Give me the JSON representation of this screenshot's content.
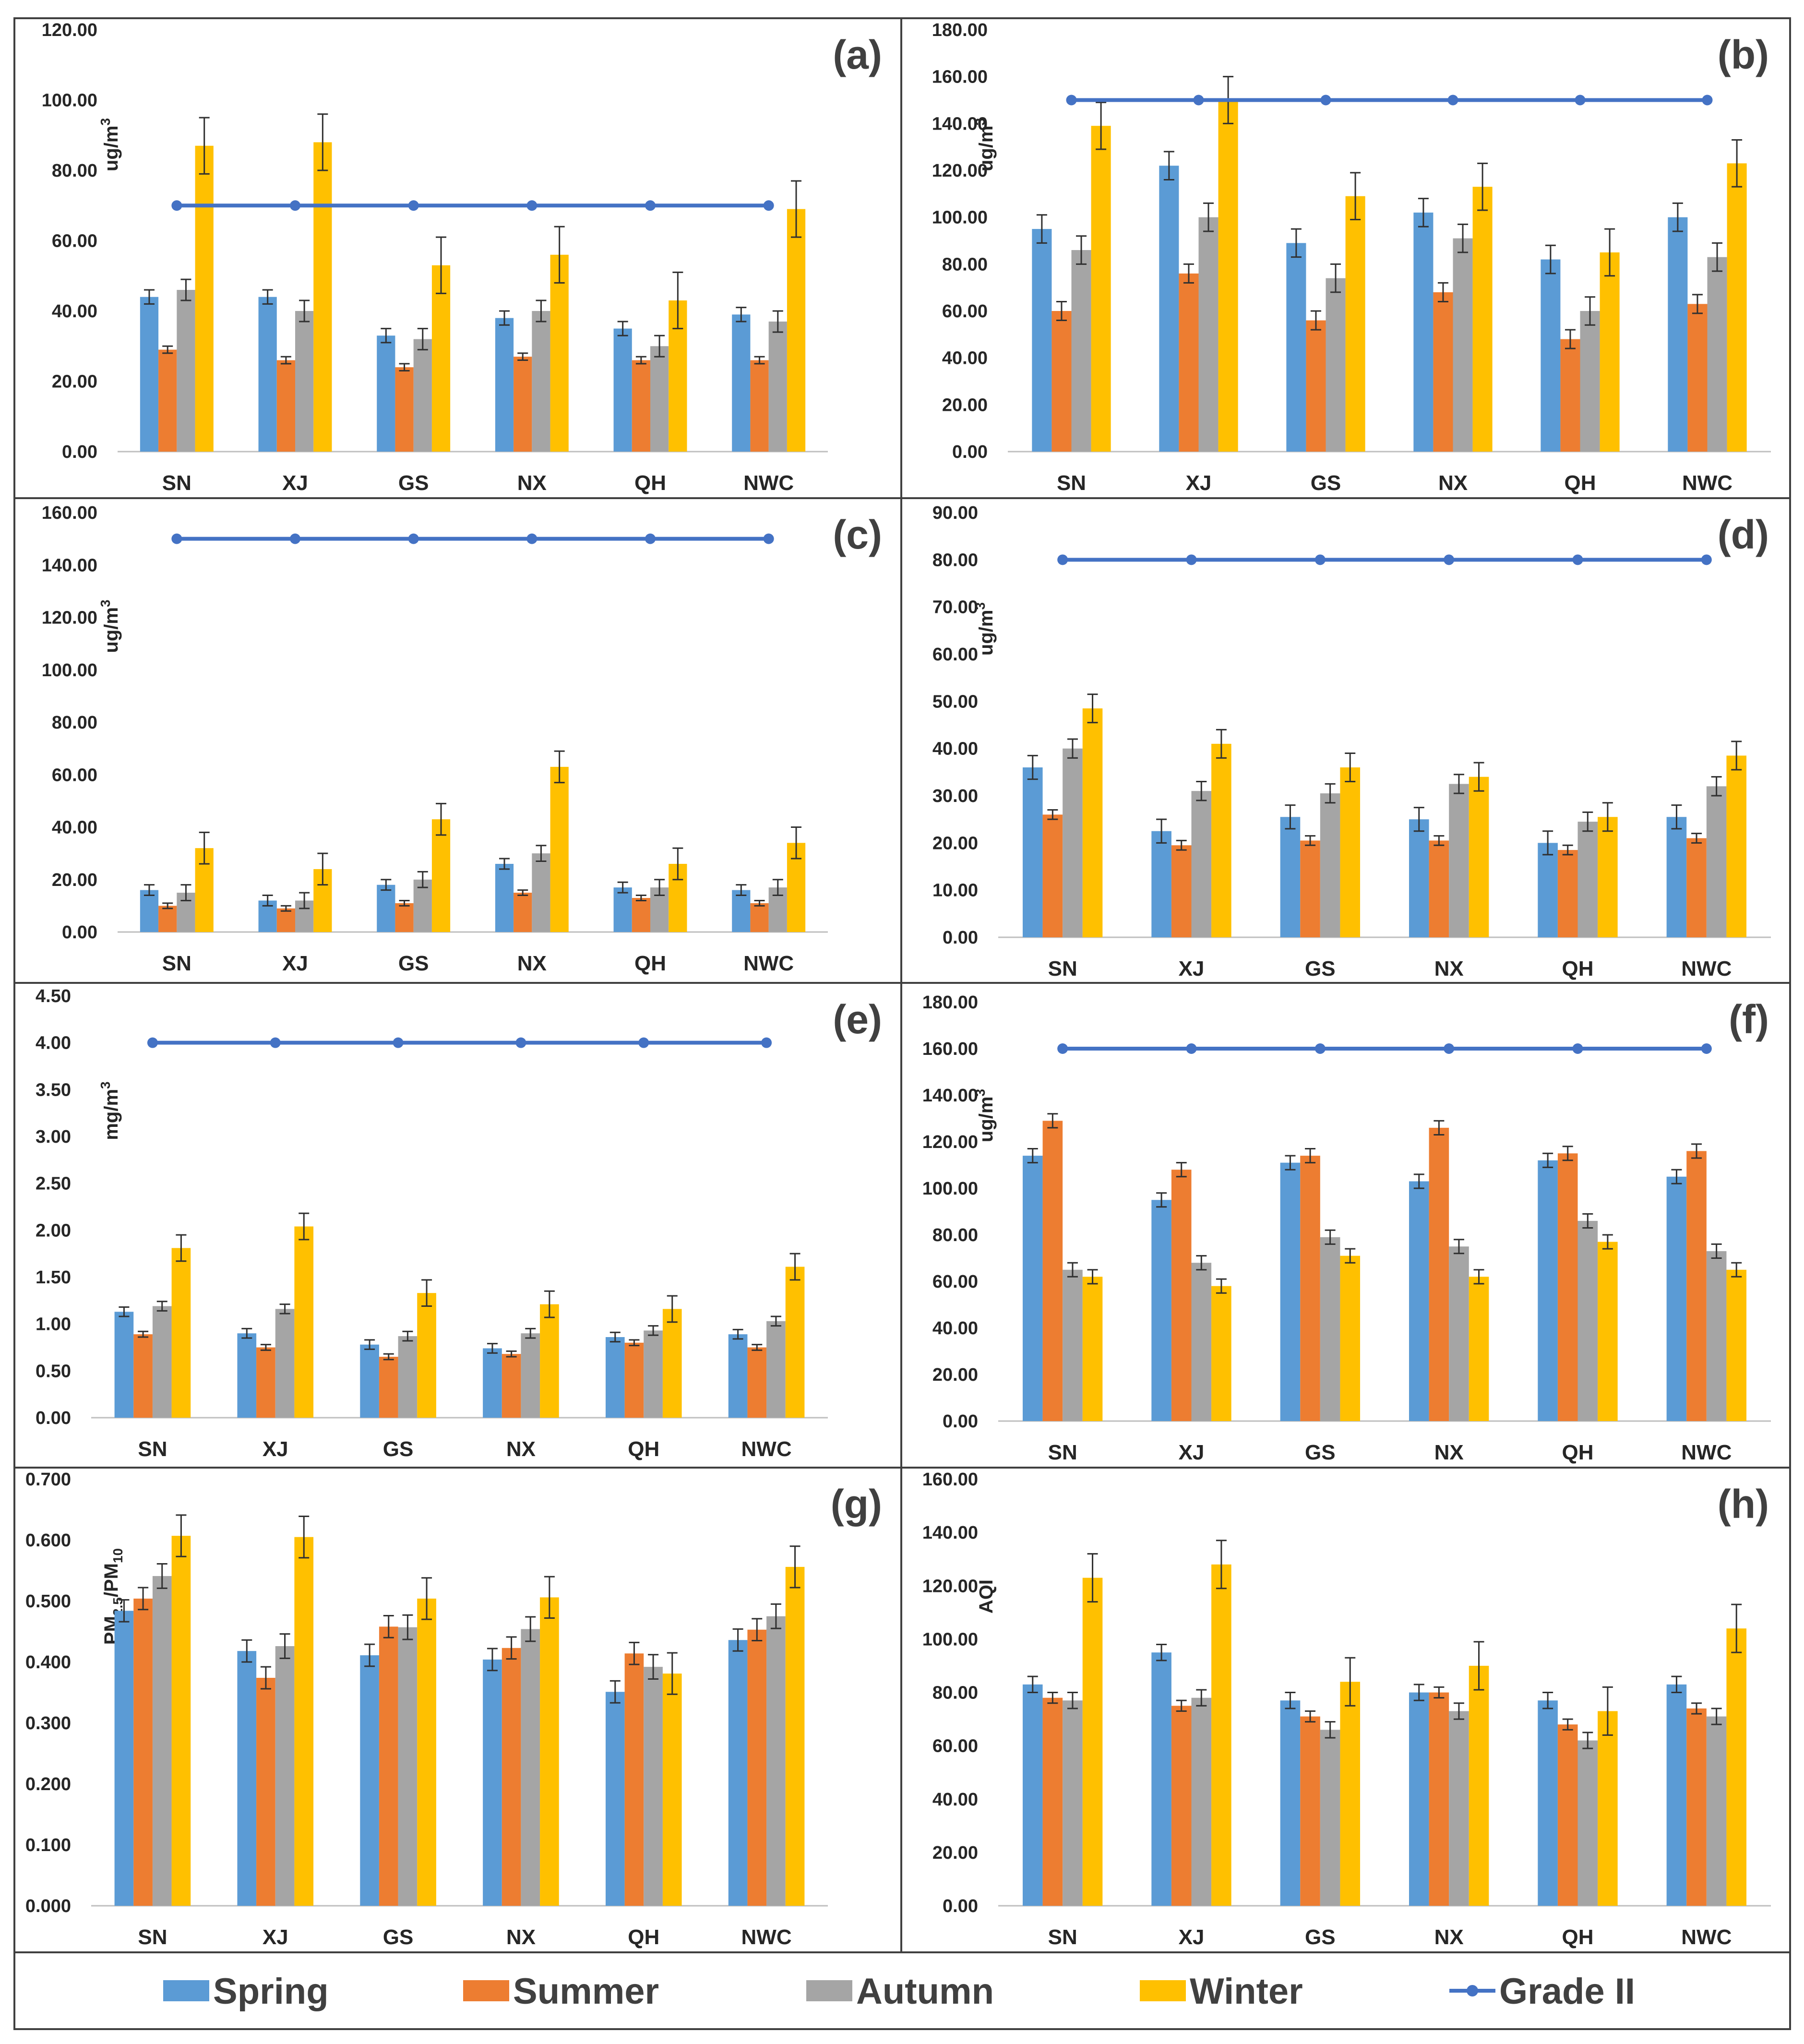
{
  "figure": {
    "colors": {
      "Spring": "#5B9BD5",
      "Summer": "#ED7D31",
      "Autumn": "#A5A5A5",
      "Winter": "#FFC000",
      "Grade II": "#4472C4",
      "error": "#303030",
      "axis": "#BFBFBF",
      "border": "#404040"
    },
    "legend": [
      {
        "name": "Spring",
        "label": "Spring",
        "kind": "bar"
      },
      {
        "name": "Summer",
        "label": "Summer",
        "kind": "bar"
      },
      {
        "name": "Autumn",
        "label": "Autumn",
        "kind": "bar"
      },
      {
        "name": "Winter",
        "label": "Winter",
        "kind": "bar"
      },
      {
        "name": "Grade II",
        "label": "Grade II",
        "kind": "line"
      }
    ]
  },
  "chart_data": [
    {
      "type": "bar",
      "panel": "(a)",
      "ylabel": "ug/m3",
      "ylabel_base": "ug/m",
      "ylabel_sup": "3",
      "ylim": [
        0,
        120
      ],
      "ytick_step": 20,
      "decimals": 2,
      "categories": [
        "SN",
        "XJ",
        "GS",
        "NX",
        "QH",
        "NWC"
      ],
      "series": [
        {
          "name": "Spring",
          "values": [
            44,
            44,
            33,
            38,
            35,
            39
          ],
          "errors": [
            2,
            2,
            2,
            2,
            2,
            2
          ]
        },
        {
          "name": "Summer",
          "values": [
            29,
            26,
            24,
            27,
            26,
            26
          ],
          "errors": [
            1,
            1,
            1,
            1,
            1,
            1
          ]
        },
        {
          "name": "Autumn",
          "values": [
            46,
            40,
            32,
            40,
            30,
            37
          ],
          "errors": [
            3,
            3,
            3,
            3,
            3,
            3
          ]
        },
        {
          "name": "Winter",
          "values": [
            87,
            88,
            53,
            56,
            43,
            69
          ],
          "errors": [
            8,
            8,
            8,
            8,
            8,
            8
          ]
        }
      ],
      "grade_ii": 70
    },
    {
      "type": "bar",
      "panel": "(b)",
      "ylabel": "ug/m3",
      "ylabel_base": "ug/m",
      "ylabel_sup": "3",
      "ylim": [
        0,
        180
      ],
      "ytick_step": 20,
      "decimals": 2,
      "categories": [
        "SN",
        "XJ",
        "GS",
        "NX",
        "QH",
        "NWC"
      ],
      "series": [
        {
          "name": "Spring",
          "values": [
            95,
            122,
            89,
            102,
            82,
            100
          ],
          "errors": [
            6,
            6,
            6,
            6,
            6,
            6
          ]
        },
        {
          "name": "Summer",
          "values": [
            60,
            76,
            56,
            68,
            48,
            63
          ],
          "errors": [
            4,
            4,
            4,
            4,
            4,
            4
          ]
        },
        {
          "name": "Autumn",
          "values": [
            86,
            100,
            74,
            91,
            60,
            83
          ],
          "errors": [
            6,
            6,
            6,
            6,
            6,
            6
          ]
        },
        {
          "name": "Winter",
          "values": [
            139,
            150,
            109,
            113,
            85,
            123
          ],
          "errors": [
            10,
            10,
            10,
            10,
            10,
            10
          ]
        }
      ],
      "grade_ii": 150
    },
    {
      "type": "bar",
      "panel": "(c)",
      "ylabel": "ug/m3",
      "ylabel_base": "ug/m",
      "ylabel_sup": "3",
      "ylim": [
        0,
        160
      ],
      "ytick_step": 20,
      "decimals": 2,
      "categories": [
        "SN",
        "XJ",
        "GS",
        "NX",
        "QH",
        "NWC"
      ],
      "series": [
        {
          "name": "Spring",
          "values": [
            16,
            12,
            18,
            26,
            17,
            16
          ],
          "errors": [
            2,
            2,
            2,
            2,
            2,
            2
          ]
        },
        {
          "name": "Summer",
          "values": [
            10,
            9,
            11,
            15,
            13,
            11
          ],
          "errors": [
            1,
            1,
            1,
            1,
            1,
            1
          ]
        },
        {
          "name": "Autumn",
          "values": [
            15,
            12,
            20,
            30,
            17,
            17
          ],
          "errors": [
            3,
            3,
            3,
            3,
            3,
            3
          ]
        },
        {
          "name": "Winter",
          "values": [
            32,
            24,
            43,
            63,
            26,
            34
          ],
          "errors": [
            6,
            6,
            6,
            6,
            6,
            6
          ]
        }
      ],
      "grade_ii": 150
    },
    {
      "type": "bar",
      "panel": "(d)",
      "ylabel": "ug/m3",
      "ylabel_base": "ug/m",
      "ylabel_sup": "3",
      "ylim": [
        0,
        90
      ],
      "ytick_step": 10,
      "decimals": 2,
      "categories": [
        "SN",
        "XJ",
        "GS",
        "NX",
        "QH",
        "NWC"
      ],
      "series": [
        {
          "name": "Spring",
          "values": [
            36,
            22.5,
            25.5,
            25,
            20,
            25.5
          ],
          "errors": [
            2.5,
            2.5,
            2.5,
            2.5,
            2.5,
            2.5
          ]
        },
        {
          "name": "Summer",
          "values": [
            26,
            19.5,
            20.5,
            20.5,
            18.5,
            21
          ],
          "errors": [
            1,
            1,
            1,
            1,
            1,
            1
          ]
        },
        {
          "name": "Autumn",
          "values": [
            40,
            31,
            30.5,
            32.5,
            24.5,
            32
          ],
          "errors": [
            2,
            2,
            2,
            2,
            2,
            2
          ]
        },
        {
          "name": "Winter",
          "values": [
            48.5,
            41,
            36,
            34,
            25.5,
            38.5
          ],
          "errors": [
            3,
            3,
            3,
            3,
            3,
            3
          ]
        }
      ],
      "grade_ii": 80
    },
    {
      "type": "bar",
      "panel": "(e)",
      "ylabel": "mg/m3",
      "ylabel_base": "mg/m",
      "ylabel_sup": "3",
      "ylim": [
        0,
        4.5
      ],
      "ytick_step": 0.5,
      "decimals": 2,
      "categories": [
        "SN",
        "XJ",
        "GS",
        "NX",
        "QH",
        "NWC"
      ],
      "series": [
        {
          "name": "Spring",
          "values": [
            1.13,
            0.9,
            0.78,
            0.74,
            0.86,
            0.89
          ],
          "errors": [
            0.05,
            0.05,
            0.05,
            0.05,
            0.05,
            0.05
          ]
        },
        {
          "name": "Summer",
          "values": [
            0.89,
            0.75,
            0.65,
            0.68,
            0.8,
            0.75
          ],
          "errors": [
            0.03,
            0.03,
            0.03,
            0.03,
            0.03,
            0.03
          ]
        },
        {
          "name": "Autumn",
          "values": [
            1.19,
            1.16,
            0.87,
            0.9,
            0.93,
            1.03
          ],
          "errors": [
            0.05,
            0.05,
            0.05,
            0.05,
            0.05,
            0.05
          ]
        },
        {
          "name": "Winter",
          "values": [
            1.81,
            2.04,
            1.33,
            1.21,
            1.16,
            1.61
          ],
          "errors": [
            0.14,
            0.14,
            0.14,
            0.14,
            0.14,
            0.14
          ]
        }
      ],
      "grade_ii": 4
    },
    {
      "type": "bar",
      "panel": "(f)",
      "ylabel": "ug/m3",
      "ylabel_base": "ug/m",
      "ylabel_sup": "3",
      "ylim": [
        0,
        180
      ],
      "ytick_step": 20,
      "decimals": 2,
      "categories": [
        "SN",
        "XJ",
        "GS",
        "NX",
        "QH",
        "NWC"
      ],
      "series": [
        {
          "name": "Spring",
          "values": [
            114,
            95,
            111,
            103,
            112,
            105
          ],
          "errors": [
            3,
            3,
            3,
            3,
            3,
            3
          ]
        },
        {
          "name": "Summer",
          "values": [
            129,
            108,
            114,
            126,
            115,
            116
          ],
          "errors": [
            3,
            3,
            3,
            3,
            3,
            3
          ]
        },
        {
          "name": "Autumn",
          "values": [
            65,
            68,
            79,
            75,
            86,
            73
          ],
          "errors": [
            3,
            3,
            3,
            3,
            3,
            3
          ]
        },
        {
          "name": "Winter",
          "values": [
            62,
            58,
            71,
            62,
            77,
            65
          ],
          "errors": [
            3,
            3,
            3,
            3,
            3,
            3
          ]
        }
      ],
      "grade_ii": 160
    },
    {
      "type": "bar",
      "panel": "(g)",
      "ylabel": "PM2.5/PM10",
      "ylim": [
        0,
        0.7
      ],
      "ytick_step": 0.1,
      "decimals": 3,
      "categories": [
        "SN",
        "XJ",
        "GS",
        "NX",
        "QH",
        "NWC"
      ],
      "series": [
        {
          "name": "Spring",
          "values": [
            0.484,
            0.418,
            0.411,
            0.404,
            0.351,
            0.436
          ],
          "errors": [
            0.018,
            0.018,
            0.018,
            0.018,
            0.018,
            0.018
          ]
        },
        {
          "name": "Summer",
          "values": [
            0.504,
            0.374,
            0.458,
            0.423,
            0.414,
            0.453
          ],
          "errors": [
            0.018,
            0.018,
            0.018,
            0.018,
            0.018,
            0.018
          ]
        },
        {
          "name": "Autumn",
          "values": [
            0.541,
            0.426,
            0.457,
            0.454,
            0.392,
            0.475
          ],
          "errors": [
            0.02,
            0.02,
            0.02,
            0.02,
            0.02,
            0.02
          ]
        },
        {
          "name": "Winter",
          "values": [
            0.607,
            0.605,
            0.504,
            0.506,
            0.381,
            0.556
          ],
          "errors": [
            0.034,
            0.034,
            0.034,
            0.034,
            0.034,
            0.034
          ]
        }
      ]
    },
    {
      "type": "bar",
      "panel": "(h)",
      "ylabel": "AQI",
      "ylim": [
        0,
        160
      ],
      "ytick_step": 20,
      "decimals": 2,
      "categories": [
        "SN",
        "XJ",
        "GS",
        "NX",
        "QH",
        "NWC"
      ],
      "series": [
        {
          "name": "Spring",
          "values": [
            83,
            95,
            77,
            80,
            77,
            83
          ],
          "errors": [
            3,
            3,
            3,
            3,
            3,
            3
          ]
        },
        {
          "name": "Summer",
          "values": [
            78,
            75,
            71,
            80,
            68,
            74
          ],
          "errors": [
            2,
            2,
            2,
            2,
            2,
            2
          ]
        },
        {
          "name": "Autumn",
          "values": [
            77,
            78,
            66,
            73,
            62,
            71
          ],
          "errors": [
            3,
            3,
            3,
            3,
            3,
            3
          ]
        },
        {
          "name": "Winter",
          "values": [
            123,
            128,
            84,
            90,
            73,
            104
          ],
          "errors": [
            9,
            9,
            9,
            9,
            9,
            9
          ]
        }
      ]
    }
  ]
}
